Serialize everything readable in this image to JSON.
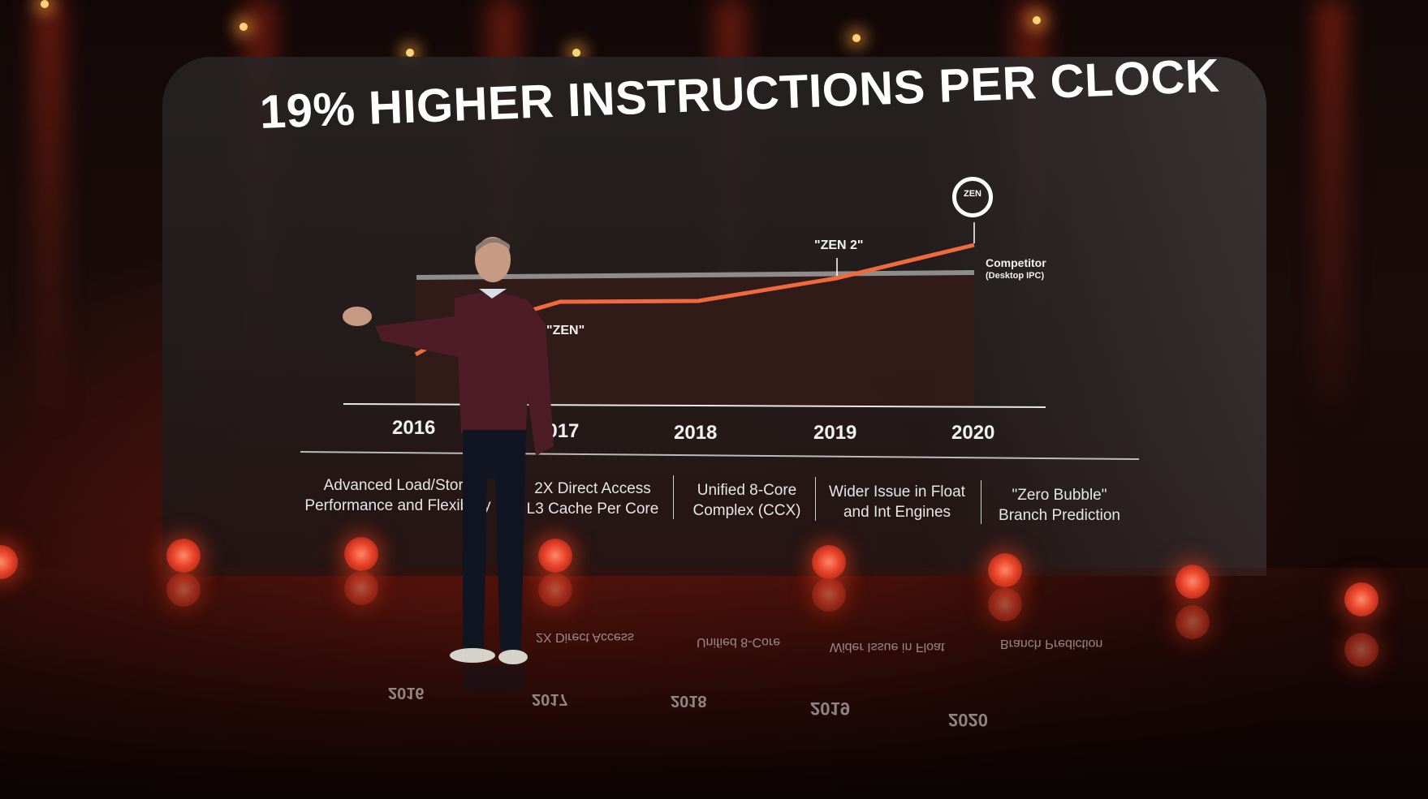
{
  "slide": {
    "title": "19% HIGHER INSTRUCTIONS PER CLOCK",
    "annotations": {
      "zen2": "\"ZEN 2\"",
      "zen": "\"ZEN\"",
      "competitor": "Competitor",
      "competitor_sub": "(Desktop IPC)",
      "badge": "ZEN"
    },
    "years": [
      "2016",
      "2017",
      "2018",
      "2019",
      "2020"
    ],
    "features": [
      {
        "line1": "Advanced Load/Store",
        "line2": "Performance and Flexibility"
      },
      {
        "line1": "2X Direct Access",
        "line2": "L3 Cache Per Core"
      },
      {
        "line1": "Unified 8-Core",
        "line2": "Complex (CCX)"
      },
      {
        "line1": "Wider Issue in Float",
        "line2": "and Int Engines"
      },
      {
        "line1": "\"Zero Bubble\"",
        "line2": "Branch Prediction"
      }
    ],
    "colors": {
      "amd_line": "#f06a3c",
      "competitor_line": "#8f8c8c",
      "accent_light": "#e8442a"
    }
  }
}
